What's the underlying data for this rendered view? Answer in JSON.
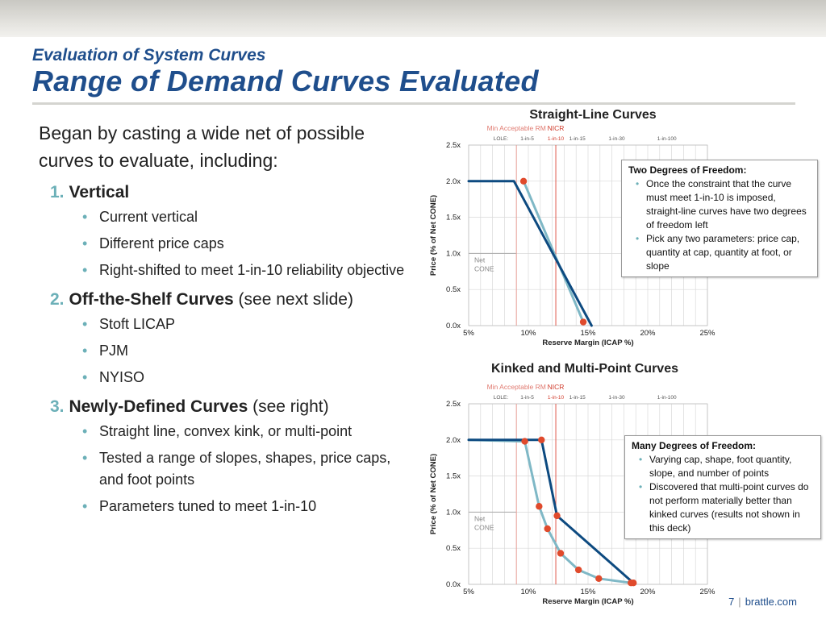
{
  "header": {
    "supertitle": "Evaluation of System Curves",
    "title": "Range of Demand Curves Evaluated"
  },
  "body": {
    "intro": "Began by casting a wide net of possible curves to evaluate, including:",
    "sections": [
      {
        "num": "1.",
        "head": "Vertical",
        "rest": "",
        "bullets": [
          "Current vertical",
          "Different price caps",
          "Right-shifted to meet 1-in-10 reliability objective"
        ]
      },
      {
        "num": "2.",
        "head": "Off-the-Shelf Curves",
        "rest": " (see next slide)",
        "bullets": [
          "Stoft LICAP",
          "PJM",
          "NYISO"
        ]
      },
      {
        "num": "3.",
        "head": "Newly-Defined Curves",
        "rest": " (see right)",
        "bullets": [
          "Straight line, convex kink, or multi-point",
          "Tested a range of slopes, shapes, price caps, and foot points",
          "Parameters tuned to meet 1-in-10"
        ]
      }
    ]
  },
  "callouts": {
    "straight": {
      "title": "Two Degrees of Freedom:",
      "items": [
        "Once the constraint that the curve must meet 1-in-10 is imposed, straight-line  curves have two degrees of freedom left",
        "Pick any two parameters: price cap, quantity at cap, quantity at foot, or slope"
      ]
    },
    "kinked": {
      "title": "Many Degrees of Freedom:",
      "items": [
        "Varying cap, shape, foot quantity, slope, and number of points",
        "Discovered that multi-point curves do not perform materially better than kinked curves (results not shown in this deck)"
      ]
    }
  },
  "footer": {
    "page": "7",
    "site": "brattle.com"
  },
  "colors": {
    "title_blue": "#1f4e8c",
    "curve_dark": "#0d4a80",
    "curve_light": "#7fb8c6",
    "marker_red": "#e04a2c",
    "ref_red": "#e07a70"
  },
  "chart_data": [
    {
      "type": "line",
      "title": "Straight-Line Curves",
      "xlabel": "Reserve Margin (ICAP %)",
      "ylabel": "Price (% of Net CONE)",
      "xlim": [
        5,
        25
      ],
      "ylim": [
        0,
        2.5
      ],
      "x_ticks": [
        "5%",
        "10%",
        "15%",
        "20%",
        "25%"
      ],
      "y_ticks": [
        "0.0x",
        "0.5x",
        "1.0x",
        "1.5x",
        "2.0x",
        "2.5x"
      ],
      "ref_labels": {
        "min_rm": "Min Acceptable RM",
        "nicr": "NICR",
        "net_cone": "Net CONE"
      },
      "lole_label": "LOLE:",
      "lole_ticks": [
        {
          "x": 9.9,
          "label": "1-in-5"
        },
        {
          "x": 12.3,
          "label": "1-in-10"
        },
        {
          "x": 14.1,
          "label": "1-in-15"
        },
        {
          "x": 17.4,
          "label": "1-in-30"
        },
        {
          "x": 21.6,
          "label": "1-in-100"
        }
      ],
      "min_rm_x": 9.0,
      "nicr_x": 12.3,
      "net_cone_y": 1.0,
      "series": [
        {
          "color": "#0d4a80",
          "markers": false,
          "points": [
            [
              5.0,
              2.0
            ],
            [
              8.8,
              2.0
            ],
            [
              15.3,
              0.0
            ]
          ]
        },
        {
          "color": "#7fb8c6",
          "markers": true,
          "points": [
            [
              9.6,
              2.0
            ],
            [
              14.6,
              0.05
            ]
          ]
        }
      ],
      "grid": true
    },
    {
      "type": "line",
      "title": "Kinked and Multi-Point Curves",
      "xlabel": "Reserve Margin (ICAP %)",
      "ylabel": "Price (% of Net CONE)",
      "xlim": [
        5,
        25
      ],
      "ylim": [
        0,
        2.5
      ],
      "x_ticks": [
        "5%",
        "10%",
        "15%",
        "20%",
        "25%"
      ],
      "y_ticks": [
        "0.0x",
        "0.5x",
        "1.0x",
        "1.5x",
        "2.0x",
        "2.5x"
      ],
      "ref_labels": {
        "min_rm": "Min Acceptable RM",
        "nicr": "NICR",
        "net_cone": "Net CONE"
      },
      "lole_label": "LOLE:",
      "lole_ticks": [
        {
          "x": 9.9,
          "label": "1-in-5"
        },
        {
          "x": 12.3,
          "label": "1-in-10"
        },
        {
          "x": 14.1,
          "label": "1-in-15"
        },
        {
          "x": 17.4,
          "label": "1-in-30"
        },
        {
          "x": 21.6,
          "label": "1-in-100"
        }
      ],
      "min_rm_x": 9.0,
      "nicr_x": 12.3,
      "net_cone_y": 1.0,
      "series": [
        {
          "color": "#0d4a80",
          "markers": true,
          "points": [
            [
              5.0,
              2.0
            ],
            [
              11.1,
              2.0
            ],
            [
              12.4,
              0.95
            ],
            [
              18.8,
              0.02
            ]
          ]
        },
        {
          "color": "#7fb8c6",
          "markers": true,
          "points": [
            [
              5.0,
              2.0
            ],
            [
              9.7,
              1.98
            ],
            [
              10.9,
              1.08
            ],
            [
              11.6,
              0.77
            ],
            [
              12.7,
              0.43
            ],
            [
              14.2,
              0.2
            ],
            [
              15.9,
              0.08
            ],
            [
              18.6,
              0.02
            ]
          ]
        }
      ],
      "grid": true
    }
  ]
}
